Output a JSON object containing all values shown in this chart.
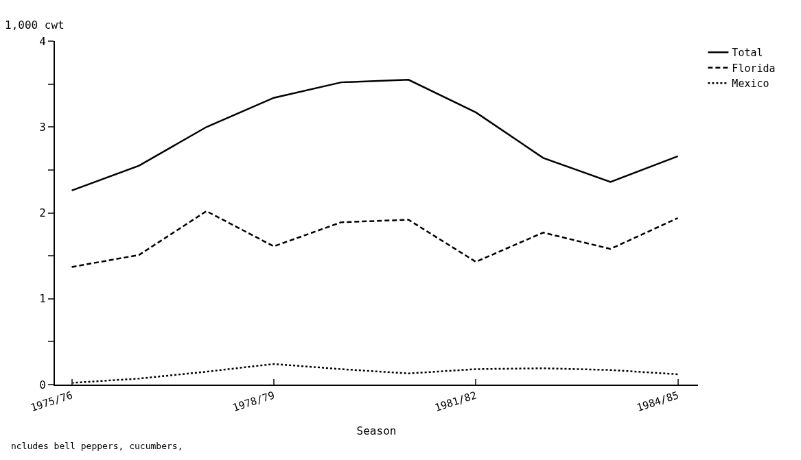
{
  "chart_data": {
    "type": "line",
    "ylabel": "1,000 cwt",
    "xlabel": "Season",
    "categories": [
      "1975/76",
      null,
      null,
      "1978/79",
      null,
      null,
      "1981/82",
      null,
      null,
      "1984/85"
    ],
    "series": [
      {
        "name": "Total",
        "color": "#000000",
        "line_style": "solid",
        "values": [
          2.26,
          2.55,
          3.0,
          3.34,
          3.52,
          3.55,
          3.17,
          2.64,
          2.36,
          2.66
        ]
      },
      {
        "name": "Florida",
        "color": "#000000",
        "line_style": "dashed",
        "values": [
          1.37,
          1.51,
          2.02,
          1.61,
          1.89,
          1.92,
          1.43,
          1.77,
          1.58,
          1.94
        ]
      },
      {
        "name": "Mexico",
        "color": "#000000",
        "line_style": "dotted",
        "values": [
          0.02,
          0.07,
          0.15,
          0.24,
          0.18,
          0.13,
          0.18,
          0.19,
          0.17,
          0.12
        ]
      }
    ],
    "ylim": [
      0,
      4
    ],
    "yticks": [
      0,
      {
        "value": 0.5,
        "label": null
      },
      1,
      {
        "value": 1.5,
        "label": null
      },
      2,
      {
        "value": 2.5,
        "label": null
      },
      3,
      {
        "value": 3.5,
        "label": null
      },
      4
    ],
    "legend": "top right",
    "marker": "none",
    "annotations": [
      "ncludes bell peppers, cucumbers,"
    ]
  }
}
